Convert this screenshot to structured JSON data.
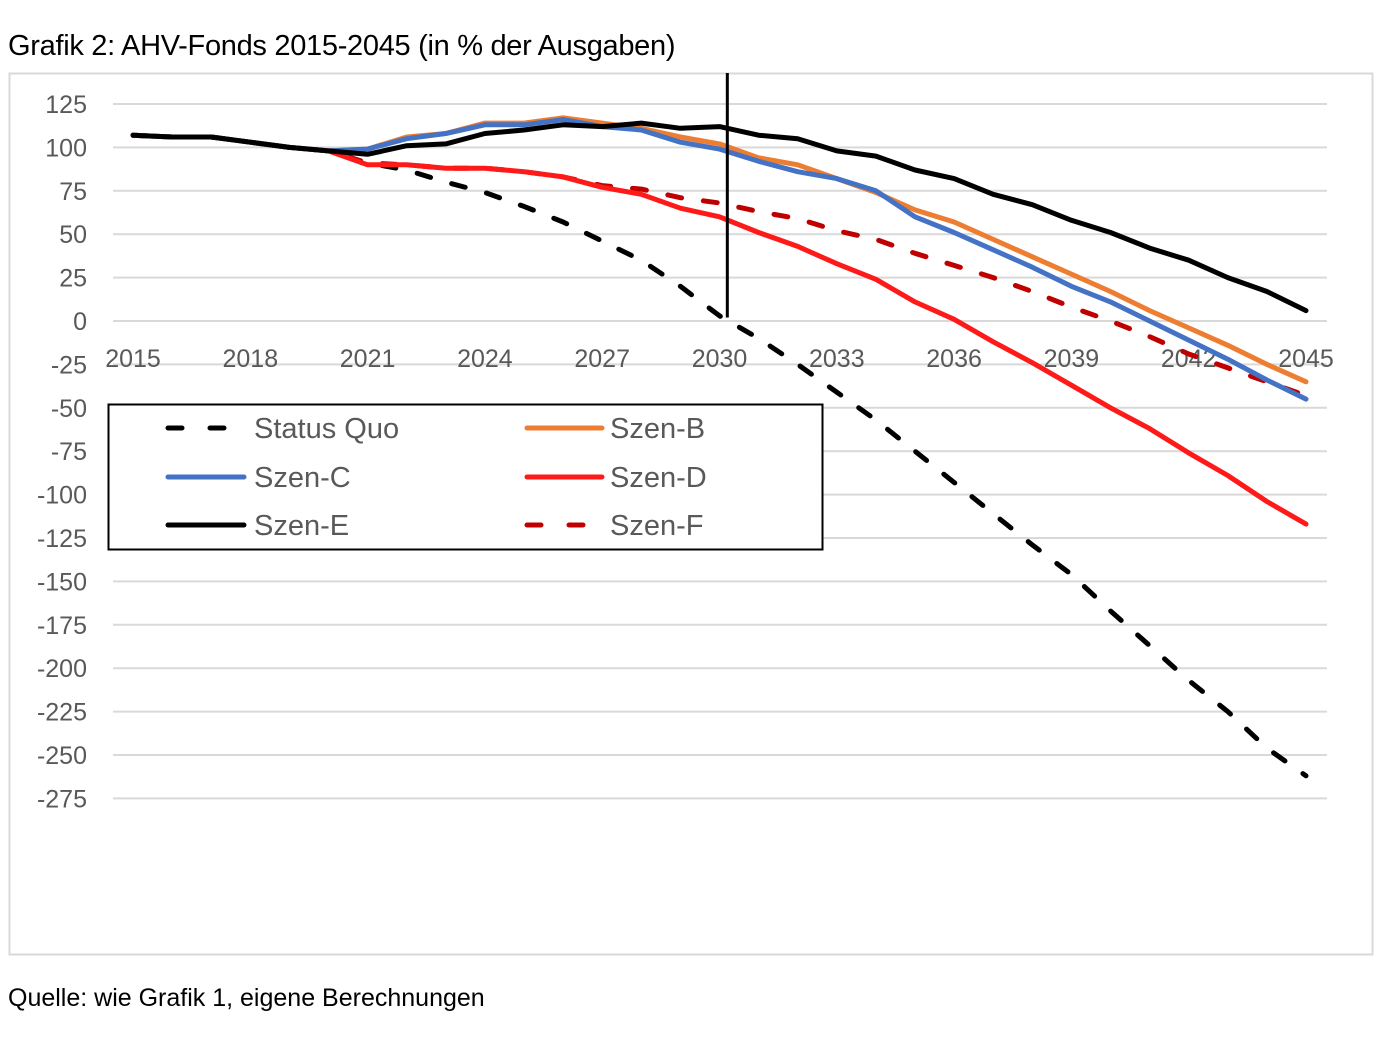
{
  "title": "Grafik 2: AHV-Fonds 2015-2045 (in % der Ausgaben)",
  "footer": "Quelle: wie Grafik 1, eigene Berechnungen",
  "chart_data": {
    "type": "line",
    "title": "Grafik 2: AHV-Fonds 2015-2045 (in % der Ausgaben)",
    "xlabel": "",
    "ylabel": "",
    "x": [
      2015,
      2016,
      2017,
      2018,
      2019,
      2020,
      2021,
      2022,
      2023,
      2024,
      2025,
      2026,
      2027,
      2028,
      2029,
      2030,
      2031,
      2032,
      2033,
      2034,
      2035,
      2036,
      2037,
      2038,
      2039,
      2040,
      2041,
      2042,
      2043,
      2044,
      2045
    ],
    "x_ticks": [
      "2015",
      "2018",
      "2021",
      "2024",
      "2027",
      "2030",
      "2033",
      "2036",
      "2039",
      "2042",
      "2045"
    ],
    "y_ticks": [
      "125",
      "100",
      "75",
      "50",
      "25",
      "0",
      "-25",
      "-50",
      "-75",
      "-100",
      "-125",
      "-150",
      "-175",
      "-200",
      "-225",
      "-250",
      "-275"
    ],
    "ylim": [
      -275,
      125
    ],
    "grid": true,
    "legend_position": "center-left",
    "vertical_marker_x": 2030.2,
    "series": [
      {
        "name": "Status Quo",
        "color": "#000000",
        "dash": "dashed",
        "values": [
          107,
          106,
          106,
          103,
          100,
          98,
          91,
          87,
          80,
          74,
          66,
          57,
          46,
          35,
          20,
          3,
          -10,
          -25,
          -41,
          -57,
          -75,
          -93,
          -111,
          -129,
          -146,
          -167,
          -187,
          -207,
          -225,
          -246,
          -262
        ]
      },
      {
        "name": "Szen-B",
        "color": "#ED7D31",
        "dash": "solid",
        "values": [
          107,
          106,
          106,
          103,
          100,
          98,
          99,
          106,
          108,
          114,
          114,
          117,
          114,
          111,
          106,
          102,
          94,
          90,
          82,
          74,
          64,
          57,
          47,
          37,
          27,
          17,
          6,
          -4,
          -14,
          -25,
          -35
        ]
      },
      {
        "name": "Szen-C",
        "color": "#4472C4",
        "dash": "solid",
        "values": [
          107,
          106,
          106,
          103,
          100,
          98,
          99,
          105,
          108,
          113,
          113,
          116,
          112,
          110,
          103,
          99,
          92,
          86,
          82,
          75,
          60,
          51,
          41,
          31,
          20,
          11,
          0,
          -11,
          -22,
          -34,
          -45
        ]
      },
      {
        "name": "Szen-D",
        "color": "#FF1A1A",
        "dash": "solid",
        "values": [
          107,
          106,
          106,
          103,
          100,
          98,
          90,
          90,
          88,
          88,
          86,
          83,
          77,
          73,
          65,
          60,
          51,
          43,
          33,
          24,
          11,
          1,
          -12,
          -24,
          -37,
          -50,
          -62,
          -76,
          -89,
          -104,
          -117
        ]
      },
      {
        "name": "Szen-E",
        "color": "#000000",
        "dash": "solid",
        "values": [
          107,
          106,
          106,
          103,
          100,
          98,
          96,
          101,
          102,
          108,
          110,
          113,
          112,
          114,
          111,
          112,
          107,
          105,
          98,
          95,
          87,
          82,
          73,
          67,
          58,
          51,
          42,
          35,
          25,
          17,
          6
        ]
      },
      {
        "name": "Szen-F",
        "color": "#C00000",
        "dash": "dashed",
        "values": [
          107,
          106,
          106,
          103,
          100,
          98,
          91,
          90,
          88,
          88,
          86,
          83,
          78,
          76,
          71,
          68,
          63,
          59,
          52,
          47,
          39,
          32,
          25,
          17,
          8,
          0,
          -9,
          -19,
          -27,
          -35,
          -43
        ]
      }
    ]
  }
}
